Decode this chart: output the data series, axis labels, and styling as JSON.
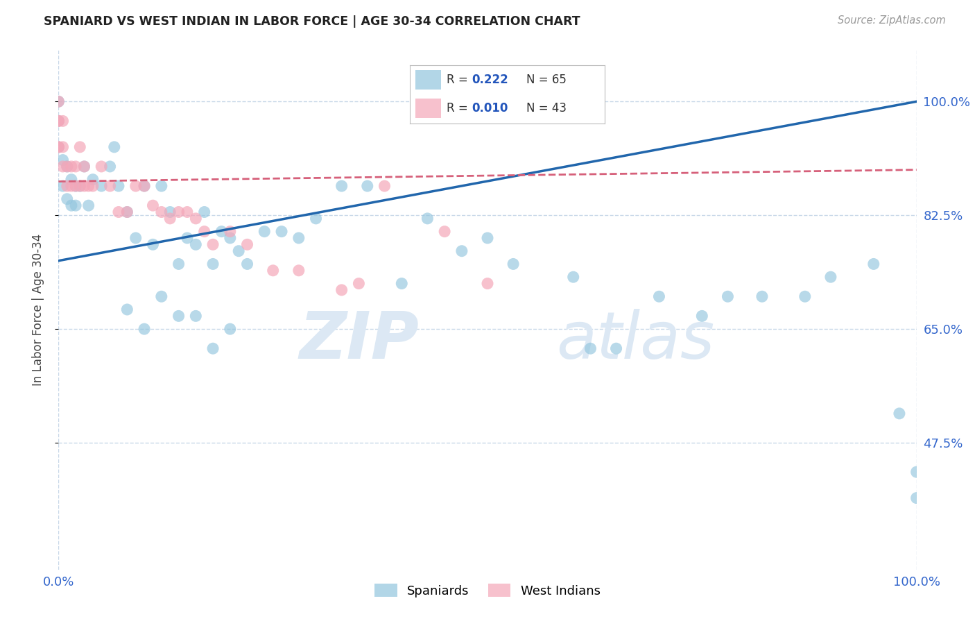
{
  "title": "SPANIARD VS WEST INDIAN IN LABOR FORCE | AGE 30-34 CORRELATION CHART",
  "source_text": "Source: ZipAtlas.com",
  "ylabel": "In Labor Force | Age 30-34",
  "xlim": [
    0.0,
    1.0
  ],
  "ylim": [
    0.28,
    1.08
  ],
  "yticks": [
    0.475,
    0.65,
    0.825,
    1.0
  ],
  "ytick_labels": [
    "47.5%",
    "65.0%",
    "82.5%",
    "100.0%"
  ],
  "xticks": [
    0.0,
    1.0
  ],
  "xtick_labels": [
    "0.0%",
    "100.0%"
  ],
  "watermark_zip": "ZIP",
  "watermark_atlas": "atlas",
  "blue_color": "#92c5de",
  "pink_color": "#f4a7b9",
  "line_blue_color": "#2166ac",
  "line_pink_color": "#d6607a",
  "background_color": "#ffffff",
  "grid_color": "#c8d8e8",
  "spaniards_label": "Spaniards",
  "west_indians_label": "West Indians",
  "blue_line_x0": 0.0,
  "blue_line_y0": 0.755,
  "blue_line_x1": 1.0,
  "blue_line_y1": 1.0,
  "pink_line_x0": 0.0,
  "pink_line_y0": 0.877,
  "pink_line_x1": 1.0,
  "pink_line_y1": 0.895,
  "blue_x": [
    0.0,
    0.0,
    0.0,
    0.005,
    0.005,
    0.01,
    0.01,
    0.015,
    0.015,
    0.02,
    0.02,
    0.025,
    0.03,
    0.035,
    0.04,
    0.05,
    0.06,
    0.065,
    0.07,
    0.08,
    0.09,
    0.1,
    0.11,
    0.12,
    0.13,
    0.14,
    0.15,
    0.16,
    0.17,
    0.18,
    0.19,
    0.2,
    0.21,
    0.22,
    0.24,
    0.26,
    0.28,
    0.3,
    0.33,
    0.36,
    0.4,
    0.43,
    0.47,
    0.5,
    0.53,
    0.6,
    0.62,
    0.65,
    0.7,
    0.75,
    0.78,
    0.82,
    0.87,
    0.9,
    0.95,
    0.98,
    1.0,
    1.0,
    0.08,
    0.1,
    0.12,
    0.14,
    0.16,
    0.18,
    0.2
  ],
  "blue_y": [
    1.0,
    0.97,
    0.93,
    0.91,
    0.87,
    0.9,
    0.85,
    0.88,
    0.84,
    0.87,
    0.84,
    0.87,
    0.9,
    0.84,
    0.88,
    0.87,
    0.9,
    0.93,
    0.87,
    0.83,
    0.79,
    0.87,
    0.78,
    0.87,
    0.83,
    0.75,
    0.79,
    0.78,
    0.83,
    0.75,
    0.8,
    0.79,
    0.77,
    0.75,
    0.8,
    0.8,
    0.79,
    0.82,
    0.87,
    0.87,
    0.72,
    0.82,
    0.77,
    0.79,
    0.75,
    0.73,
    0.62,
    0.62,
    0.7,
    0.67,
    0.7,
    0.7,
    0.7,
    0.73,
    0.75,
    0.52,
    0.43,
    0.39,
    0.68,
    0.65,
    0.7,
    0.67,
    0.67,
    0.62,
    0.65
  ],
  "pink_x": [
    0.0,
    0.0,
    0.0,
    0.0,
    0.0,
    0.005,
    0.005,
    0.005,
    0.01,
    0.01,
    0.015,
    0.015,
    0.02,
    0.02,
    0.025,
    0.025,
    0.03,
    0.03,
    0.035,
    0.04,
    0.05,
    0.06,
    0.07,
    0.08,
    0.09,
    0.1,
    0.11,
    0.12,
    0.13,
    0.14,
    0.15,
    0.16,
    0.17,
    0.18,
    0.2,
    0.22,
    0.25,
    0.28,
    0.33,
    0.35,
    0.38,
    0.45,
    0.5
  ],
  "pink_y": [
    1.0,
    0.97,
    0.97,
    0.93,
    0.93,
    0.97,
    0.93,
    0.9,
    0.9,
    0.87,
    0.9,
    0.87,
    0.9,
    0.87,
    0.93,
    0.87,
    0.9,
    0.87,
    0.87,
    0.87,
    0.9,
    0.87,
    0.83,
    0.83,
    0.87,
    0.87,
    0.84,
    0.83,
    0.82,
    0.83,
    0.83,
    0.82,
    0.8,
    0.78,
    0.8,
    0.78,
    0.74,
    0.74,
    0.71,
    0.72,
    0.87,
    0.8,
    0.72
  ]
}
